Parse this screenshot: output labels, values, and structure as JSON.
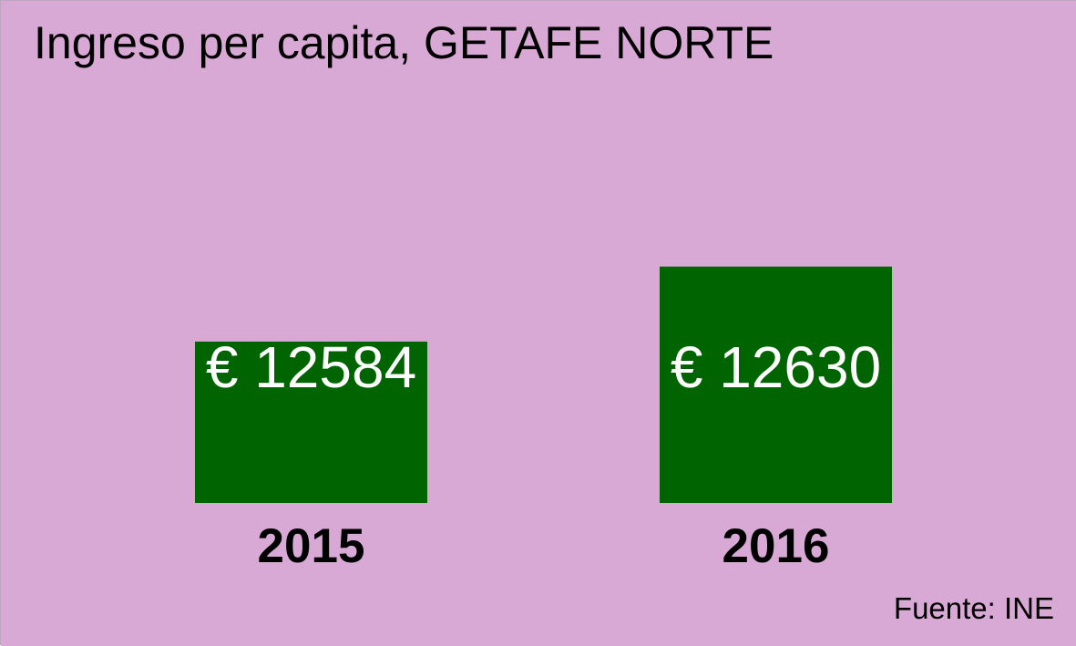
{
  "chart_data": {
    "type": "bar",
    "title": "Ingreso per capita, GETAFE NORTE",
    "categories": [
      "2015",
      "2016"
    ],
    "values": [
      12584,
      12630
    ],
    "value_labels": [
      "€ 12584",
      "€ 12630"
    ],
    "xlabel": "",
    "ylabel": "",
    "ylim": [
      12485,
      12665
    ],
    "grid": false,
    "legend": "none",
    "source": "Fuente: INE"
  },
  "colors": {
    "background": "#d9a9d6",
    "bar": "#006400",
    "value_label": "#ffffff",
    "text": "#000000"
  }
}
